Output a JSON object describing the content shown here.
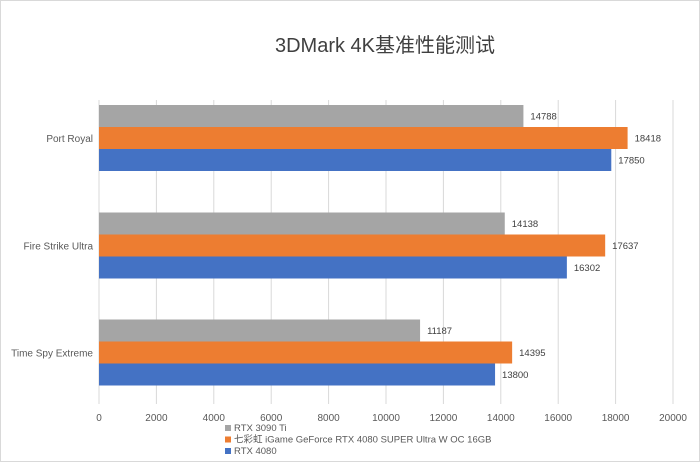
{
  "chart_data": {
    "type": "bar",
    "orientation": "horizontal",
    "title": "3DMark 4K基准性能测试",
    "categories": [
      "Port Royal",
      "Fire Strike Ultra",
      "Time Spy Extreme"
    ],
    "series": [
      {
        "name": "RTX 3090 Ti",
        "color": "#a5a5a5",
        "values": [
          14788,
          14138,
          11187
        ]
      },
      {
        "name": "七彩虹 iGame GeForce RTX 4080 SUPER Ultra W OC 16GB",
        "color": "#ed7d31",
        "values": [
          18418,
          17637,
          14395
        ]
      },
      {
        "name": "RTX 4080",
        "color": "#4472c4",
        "values": [
          17850,
          16302,
          13800
        ]
      }
    ],
    "xlim": [
      0,
      20000
    ],
    "xticks": [
      0,
      2000,
      4000,
      6000,
      8000,
      10000,
      12000,
      14000,
      16000,
      18000,
      20000
    ],
    "grid": true,
    "legend": "bottom-left"
  }
}
